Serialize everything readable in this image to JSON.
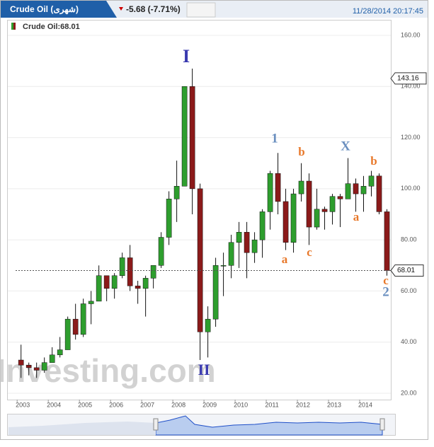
{
  "header": {
    "tab": "Crude Oil (شهری)",
    "change": "-5.68 (-7.71%)",
    "datetime": "11/28/2014 20:17:45"
  },
  "legend": "Crude Oil:68.01",
  "watermark": "Investing.com",
  "chart_data": {
    "type": "candlestick",
    "up_color": "#2e9e2e",
    "down_color": "#8b1a1a",
    "x": [
      2003,
      2003.25,
      2003.5,
      2003.75,
      2004,
      2004.25,
      2004.5,
      2004.75,
      2005,
      2005.25,
      2005.5,
      2005.75,
      2006,
      2006.25,
      2006.5,
      2006.75,
      2007,
      2007.25,
      2007.5,
      2007.75,
      2008,
      2008.25,
      2008.5,
      2008.75,
      2009,
      2009.25,
      2009.5,
      2009.75,
      2010,
      2010.25,
      2010.5,
      2010.75,
      2011,
      2011.25,
      2011.5,
      2011.75,
      2012,
      2012.25,
      2012.5,
      2012.75,
      2013,
      2013.25,
      2013.5,
      2013.75,
      2014,
      2014.25,
      2014.5,
      2014.75
    ],
    "ohlc": [
      [
        33,
        39,
        26,
        31
      ],
      [
        31,
        32,
        27,
        30
      ],
      [
        30,
        32,
        26,
        29
      ],
      [
        29,
        34,
        28,
        32
      ],
      [
        32,
        38,
        32,
        35
      ],
      [
        35,
        42,
        34,
        37
      ],
      [
        37,
        50,
        37,
        49
      ],
      [
        49,
        55,
        41,
        43
      ],
      [
        43,
        57,
        42,
        55
      ],
      [
        55,
        60,
        47,
        56
      ],
      [
        56,
        70,
        56,
        66
      ],
      [
        66,
        66,
        56,
        61
      ],
      [
        61,
        67,
        57,
        66
      ],
      [
        66,
        75,
        65,
        73
      ],
      [
        73,
        78,
        60,
        62
      ],
      [
        62,
        64,
        55,
        61
      ],
      [
        61,
        66,
        50,
        65
      ],
      [
        65,
        70,
        61,
        70
      ],
      [
        70,
        83,
        69,
        81
      ],
      [
        81,
        99,
        78,
        96
      ],
      [
        96,
        111,
        87,
        101
      ],
      [
        101,
        140,
        101,
        140
      ],
      [
        140,
        147,
        90,
        100
      ],
      [
        100,
        102,
        33,
        44
      ],
      [
        44,
        54,
        34,
        49
      ],
      [
        49,
        73,
        46,
        70
      ],
      [
        70,
        75,
        58,
        70
      ],
      [
        70,
        82,
        65,
        79
      ],
      [
        79,
        87,
        69,
        83
      ],
      [
        83,
        87,
        65,
        75
      ],
      [
        75,
        83,
        71,
        80
      ],
      [
        80,
        92,
        73,
        91
      ],
      [
        91,
        107,
        84,
        106
      ],
      [
        106,
        114,
        90,
        95
      ],
      [
        95,
        100,
        76,
        79
      ],
      [
        79,
        100,
        75,
        98
      ],
      [
        98,
        110,
        95,
        103
      ],
      [
        103,
        106,
        78,
        85
      ],
      [
        85,
        100,
        84,
        92
      ],
      [
        92,
        93,
        84,
        91
      ],
      [
        91,
        98,
        86,
        97
      ],
      [
        97,
        98,
        85,
        96
      ],
      [
        96,
        112,
        96,
        102
      ],
      [
        102,
        104,
        91,
        98
      ],
      [
        98,
        105,
        91,
        101
      ],
      [
        101,
        107,
        97,
        105
      ],
      [
        105,
        106,
        90,
        91
      ],
      [
        91,
        92,
        66,
        68.01
      ]
    ],
    "crosshair_value": 143.16,
    "xlim": [
      2002.95,
      2015
    ],
    "xticks": [
      2003,
      2004,
      2005,
      2006,
      2007,
      2008,
      2009,
      2010,
      2011,
      2012,
      2013,
      2014
    ],
    "ylim": [
      20,
      160
    ],
    "yticks": [
      {
        "value": 20,
        "label": "20.00"
      },
      {
        "value": 40,
        "label": "40.00"
      },
      {
        "value": 60,
        "label": "60.00"
      },
      {
        "value": 80,
        "label": "80.00"
      },
      {
        "value": 100,
        "label": "100.00"
      },
      {
        "value": 120,
        "label": "120.00"
      },
      {
        "value": 140,
        "label": "140.00"
      },
      {
        "value": 160,
        "label": "160.00"
      }
    ],
    "annotations": [
      {
        "text": "I",
        "color": "#3a3ab0"
      },
      {
        "text": "II",
        "color": "#3a3ab0"
      },
      {
        "text": "1",
        "color": "#6a8fbf"
      },
      {
        "text": "b",
        "color": "#e8782a"
      },
      {
        "text": "X",
        "color": "#6a8fbf"
      },
      {
        "text": "b",
        "color": "#e8782a"
      },
      {
        "text": "a",
        "color": "#e8782a"
      },
      {
        "text": "c",
        "color": "#e8782a"
      },
      {
        "text": "a",
        "color": "#e8782a"
      },
      {
        "text": "c",
        "color": "#e8782a"
      },
      {
        "text": "2",
        "color": "#6a8fbf"
      }
    ]
  }
}
